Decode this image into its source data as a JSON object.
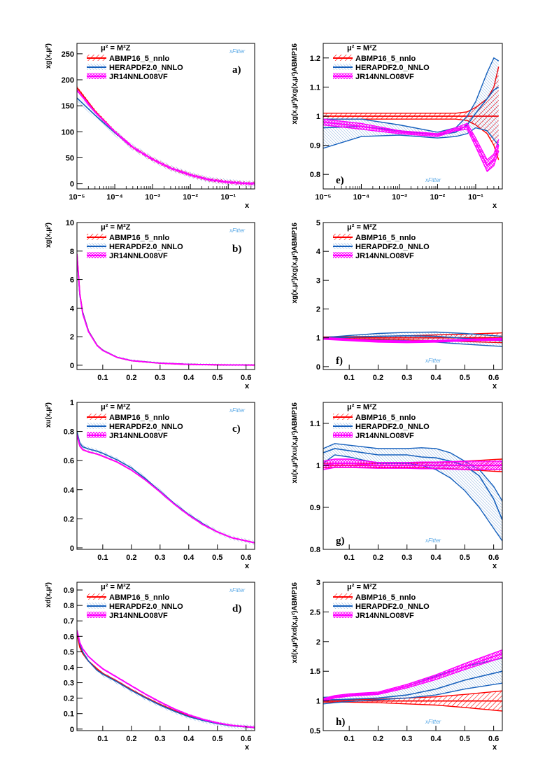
{
  "legend": {
    "scale": "μ² = M²Z",
    "entries": [
      "ABMP16_5_nnlo",
      "HERAPDF2.0_NNLO",
      "JR14NNLO08VF"
    ]
  },
  "colors": {
    "abmp": "#ff0000",
    "hera": "#1560bd",
    "jr": "#ff00ff"
  },
  "watermark": "xFitter",
  "chart_data": [
    {
      "panel": "a)",
      "type": "line",
      "xscale": "log",
      "ylabel": "xg(x,μ²)",
      "xlabel": "x",
      "xlim": [
        1e-05,
        0.5
      ],
      "ylim": [
        -10,
        270
      ],
      "xticks": [
        1e-05,
        0.0001,
        0.001,
        0.01,
        0.1
      ],
      "xticklabels": [
        "10⁻⁵",
        "10⁻⁴",
        "10⁻³",
        "10⁻²",
        "10⁻¹"
      ],
      "yticks": [
        0,
        50,
        100,
        150,
        200,
        250
      ],
      "yticklabels": [
        "0",
        "50",
        "100",
        "150",
        "200",
        "250"
      ],
      "x": [
        1e-05,
        3e-05,
        0.0001,
        0.0003,
        0.001,
        0.003,
        0.01,
        0.03,
        0.1,
        0.3,
        0.5
      ],
      "series": [
        {
          "name": "ABMP16_5_nnlo",
          "values": [
            185,
            140,
            100,
            70,
            47,
            30,
            17,
            8,
            3,
            0.5,
            0.1
          ],
          "band": 4
        },
        {
          "name": "HERAPDF2.0_NNLO",
          "values": [
            165,
            132,
            98,
            70,
            47,
            30,
            17,
            8,
            3,
            0.5,
            0.1
          ],
          "band": 6
        },
        {
          "name": "JR14NNLO08VF",
          "values": [
            180,
            138,
            100,
            70,
            47,
            30,
            17,
            8,
            3,
            0.5,
            0.1
          ],
          "band": 3
        }
      ]
    },
    {
      "panel": "e)",
      "type": "line",
      "xscale": "log",
      "ylabel": "xg(x,μ²)/xg(x,μ²)ABMP16",
      "xlabel": "x",
      "xlim": [
        1e-05,
        0.5
      ],
      "ylim": [
        0.75,
        1.25
      ],
      "xticks": [
        1e-05,
        0.0001,
        0.001,
        0.01,
        0.1
      ],
      "xticklabels": [
        "10⁻⁵",
        "10⁻⁴",
        "10⁻³",
        "10⁻²",
        "10⁻¹"
      ],
      "yticks": [
        0.8,
        0.9,
        1.0,
        1.1,
        1.2
      ],
      "yticklabels": [
        "0.8",
        "0.9",
        "1",
        "1.1",
        "1.2"
      ],
      "x": [
        1e-05,
        0.0001,
        0.001,
        0.01,
        0.03,
        0.06,
        0.1,
        0.2,
        0.3,
        0.4
      ],
      "series": [
        {
          "name": "ABMP16_5_nnlo",
          "values": [
            1.0,
            1.0,
            1.0,
            1.0,
            1.0,
            1.0,
            1.0,
            1.0,
            1.0,
            1.0
          ],
          "bandLo": [
            0.99,
            0.99,
            0.99,
            0.99,
            0.99,
            0.985,
            0.97,
            0.94,
            0.9,
            0.85
          ],
          "bandHi": [
            1.01,
            1.01,
            1.01,
            1.01,
            1.01,
            1.015,
            1.03,
            1.06,
            1.1,
            1.17
          ]
        },
        {
          "name": "HERAPDF2.0_NNLO",
          "values": [
            0.96,
            0.965,
            0.95,
            0.935,
            0.945,
            0.97,
            1.01,
            1.06,
            1.09,
            1.1
          ],
          "bandLo": [
            0.89,
            0.93,
            0.935,
            0.925,
            0.93,
            0.94,
            0.96,
            0.95,
            0.92,
            0.9
          ],
          "bandHi": [
            0.99,
            0.99,
            0.97,
            0.945,
            0.96,
            1.0,
            1.05,
            1.15,
            1.2,
            1.19
          ]
        },
        {
          "name": "JR14NNLO08VF",
          "values": [
            0.98,
            0.965,
            0.945,
            0.935,
            0.955,
            0.965,
            0.91,
            0.83,
            0.85,
            0.9
          ],
          "bandLo": [
            0.97,
            0.955,
            0.94,
            0.93,
            0.95,
            0.955,
            0.895,
            0.81,
            0.83,
            0.88
          ],
          "bandHi": [
            0.99,
            0.975,
            0.95,
            0.94,
            0.96,
            0.975,
            0.925,
            0.85,
            0.87,
            0.92
          ]
        }
      ]
    },
    {
      "panel": "b)",
      "type": "line",
      "xscale": "linear",
      "ylabel": "xg(x,μ²)",
      "xlabel": "x",
      "xlim": [
        0.01,
        0.63
      ],
      "ylim": [
        -0.3,
        10
      ],
      "xticks": [
        0.1,
        0.2,
        0.3,
        0.4,
        0.5,
        0.6
      ],
      "xticklabels": [
        "0.1",
        "0.2",
        "0.3",
        "0.4",
        "0.5",
        "0.6"
      ],
      "yticks": [
        0,
        2,
        4,
        6,
        8,
        10
      ],
      "yticklabels": [
        "0",
        "2",
        "4",
        "6",
        "8",
        "10"
      ],
      "x": [
        0.01,
        0.02,
        0.03,
        0.05,
        0.08,
        0.1,
        0.15,
        0.2,
        0.3,
        0.4,
        0.5,
        0.63
      ],
      "series": [
        {
          "name": "ABMP16_5_nnlo",
          "values": [
            7.8,
            5.0,
            3.7,
            2.4,
            1.4,
            1.05,
            0.55,
            0.32,
            0.14,
            0.06,
            0.03,
            0.01
          ],
          "band": 0.05
        },
        {
          "name": "HERAPDF2.0_NNLO",
          "values": [
            7.6,
            4.9,
            3.7,
            2.4,
            1.4,
            1.05,
            0.56,
            0.33,
            0.15,
            0.07,
            0.03,
            0.01
          ],
          "band": 0.08
        },
        {
          "name": "JR14NNLO08VF",
          "values": [
            7.8,
            5.0,
            3.6,
            2.35,
            1.38,
            1.03,
            0.55,
            0.32,
            0.14,
            0.06,
            0.03,
            0.01
          ],
          "band": 0.04
        }
      ]
    },
    {
      "panel": "f)",
      "type": "line",
      "xscale": "linear",
      "ylabel": "xg(x,μ²)/xg(x,μ²)ABMP16",
      "xlabel": "x",
      "xlim": [
        0.01,
        0.63
      ],
      "ylim": [
        -0.1,
        5
      ],
      "xticks": [
        0.1,
        0.2,
        0.3,
        0.4,
        0.5,
        0.6
      ],
      "xticklabels": [
        "0.1",
        "0.2",
        "0.3",
        "0.4",
        "0.5",
        "0.6"
      ],
      "yticks": [
        0,
        1,
        2,
        3,
        4,
        5
      ],
      "yticklabels": [
        "0",
        "1",
        "2",
        "3",
        "4",
        "5"
      ],
      "x": [
        0.01,
        0.1,
        0.2,
        0.3,
        0.4,
        0.5,
        0.63
      ],
      "series": [
        {
          "name": "ABMP16_5_nnlo",
          "values": [
            1.0,
            1.0,
            1.0,
            1.0,
            1.0,
            1.0,
            1.0
          ],
          "bandLo": [
            0.97,
            0.96,
            0.95,
            0.93,
            0.9,
            0.87,
            0.83
          ],
          "bandHi": [
            1.03,
            1.04,
            1.05,
            1.07,
            1.1,
            1.13,
            1.17
          ]
        },
        {
          "name": "HERAPDF2.0_NNLO",
          "values": [
            0.98,
            1.02,
            1.05,
            1.07,
            1.05,
            0.98,
            0.9
          ],
          "bandLo": [
            0.95,
            0.95,
            0.92,
            0.9,
            0.85,
            0.78,
            0.7
          ],
          "bandHi": [
            1.01,
            1.08,
            1.15,
            1.19,
            1.2,
            1.15,
            1.05
          ]
        },
        {
          "name": "JR14NNLO08VF",
          "values": [
            0.98,
            0.93,
            0.88,
            0.86,
            0.88,
            0.92,
            0.95
          ],
          "bandLo": [
            0.95,
            0.9,
            0.85,
            0.83,
            0.85,
            0.89,
            0.92
          ],
          "bandHi": [
            1.01,
            0.96,
            0.91,
            0.89,
            0.91,
            0.95,
            0.98
          ]
        }
      ]
    },
    {
      "panel": "c)",
      "type": "line",
      "xscale": "linear",
      "ylabel": "xu(x,μ²)",
      "xlabel": "x",
      "xlim": [
        0.01,
        0.63
      ],
      "ylim": [
        -0.01,
        1.0
      ],
      "xticks": [
        0.1,
        0.2,
        0.3,
        0.4,
        0.5,
        0.6
      ],
      "xticklabels": [
        "0.1",
        "0.2",
        "0.3",
        "0.4",
        "0.5",
        "0.6"
      ],
      "yticks": [
        0,
        0.2,
        0.4,
        0.6,
        0.8,
        1.0
      ],
      "yticklabels": [
        "0",
        "0.2",
        "0.4",
        "0.6",
        "0.8",
        "1"
      ],
      "x": [
        0.01,
        0.02,
        0.03,
        0.05,
        0.08,
        0.1,
        0.15,
        0.2,
        0.25,
        0.3,
        0.35,
        0.4,
        0.45,
        0.5,
        0.55,
        0.63
      ],
      "series": [
        {
          "name": "ABMP16_5_nnlo",
          "values": [
            0.78,
            0.7,
            0.675,
            0.66,
            0.645,
            0.63,
            0.59,
            0.535,
            0.465,
            0.385,
            0.3,
            0.225,
            0.16,
            0.11,
            0.07,
            0.035
          ],
          "band": 0.005
        },
        {
          "name": "HERAPDF2.0_NNLO",
          "values": [
            0.8,
            0.72,
            0.695,
            0.68,
            0.665,
            0.65,
            0.605,
            0.55,
            0.475,
            0.39,
            0.305,
            0.23,
            0.165,
            0.11,
            0.07,
            0.035
          ],
          "band": 0.015
        },
        {
          "name": "JR14NNLO08VF",
          "values": [
            0.78,
            0.7,
            0.675,
            0.66,
            0.645,
            0.63,
            0.59,
            0.535,
            0.465,
            0.385,
            0.3,
            0.225,
            0.16,
            0.11,
            0.07,
            0.035
          ],
          "band": 0.005
        }
      ]
    },
    {
      "panel": "g)",
      "type": "line",
      "xscale": "linear",
      "ylabel": "xu(x,μ²)/xu(x,μ²)ABMP16",
      "xlabel": "x",
      "xlim": [
        0.01,
        0.63
      ],
      "ylim": [
        0.8,
        1.15
      ],
      "xticks": [
        0.1,
        0.2,
        0.3,
        0.4,
        0.5,
        0.6
      ],
      "xticklabels": [
        "0.1",
        "0.2",
        "0.3",
        "0.4",
        "0.5",
        "0.6"
      ],
      "yticks": [
        0.8,
        0.9,
        1.0,
        1.1
      ],
      "yticklabels": [
        "0.8",
        "0.9",
        "1",
        "1.1"
      ],
      "x": [
        0.01,
        0.05,
        0.1,
        0.2,
        0.3,
        0.35,
        0.4,
        0.45,
        0.5,
        0.55,
        0.6,
        0.63
      ],
      "series": [
        {
          "name": "ABMP16_5_nnlo",
          "values": [
            1.0,
            1.0,
            1.0,
            1.0,
            1.0,
            1.0,
            1.0,
            1.0,
            1.0,
            1.0,
            1.0,
            1.0
          ],
          "bandLo": [
            0.995,
            0.995,
            0.995,
            0.995,
            0.995,
            0.994,
            0.993,
            0.992,
            0.99,
            0.988,
            0.986,
            0.985
          ],
          "bandHi": [
            1.005,
            1.005,
            1.005,
            1.005,
            1.005,
            1.006,
            1.007,
            1.008,
            1.01,
            1.012,
            1.014,
            1.015
          ]
        },
        {
          "name": "HERAPDF2.0_NNLO",
          "values": [
            1.03,
            1.04,
            1.035,
            1.025,
            1.025,
            1.02,
            1.018,
            1.01,
            1.0,
            0.975,
            0.92,
            0.87
          ],
          "bandLo": [
            1.005,
            1.025,
            1.02,
            1.005,
            1.005,
            1.0,
            0.99,
            0.97,
            0.94,
            0.9,
            0.85,
            0.82
          ],
          "bandHi": [
            1.04,
            1.052,
            1.048,
            1.04,
            1.04,
            1.042,
            1.04,
            1.03,
            1.01,
            0.99,
            0.95,
            0.915
          ]
        },
        {
          "name": "JR14NNLO08VF",
          "values": [
            1.0,
            1.005,
            1.005,
            1.0,
            1.0,
            1.0,
            1.0,
            1.0,
            1.0,
            1.0,
            1.0,
            1.0
          ],
          "bandLo": [
            0.99,
            0.995,
            0.995,
            0.993,
            0.993,
            0.992,
            0.992,
            0.991,
            0.99,
            0.99,
            0.99,
            0.99
          ],
          "bandHi": [
            1.01,
            1.015,
            1.015,
            1.007,
            1.007,
            1.008,
            1.008,
            1.009,
            1.01,
            1.01,
            1.01,
            1.01
          ]
        }
      ]
    },
    {
      "panel": "d)",
      "type": "line",
      "xscale": "linear",
      "ylabel": "xd(x,μ²)",
      "xlabel": "x",
      "xlim": [
        0.01,
        0.63
      ],
      "ylim": [
        -0.01,
        0.95
      ],
      "xticks": [
        0.1,
        0.2,
        0.3,
        0.4,
        0.5,
        0.6
      ],
      "xticklabels": [
        "0.1",
        "0.2",
        "0.3",
        "0.4",
        "0.5",
        "0.6"
      ],
      "yticks": [
        0,
        0.1,
        0.2,
        0.3,
        0.4,
        0.5,
        0.6,
        0.7,
        0.8,
        0.9
      ],
      "yticklabels": [
        "0",
        "0.1",
        "0.2",
        "0.3",
        "0.4",
        "0.5",
        "0.6",
        "0.7",
        "0.8",
        "0.9"
      ],
      "x": [
        0.01,
        0.02,
        0.03,
        0.05,
        0.08,
        0.1,
        0.15,
        0.2,
        0.25,
        0.3,
        0.35,
        0.4,
        0.45,
        0.5,
        0.55,
        0.63
      ],
      "series": [
        {
          "name": "ABMP16_5_nnlo",
          "values": [
            0.62,
            0.53,
            0.49,
            0.44,
            0.39,
            0.36,
            0.31,
            0.255,
            0.205,
            0.16,
            0.12,
            0.085,
            0.058,
            0.037,
            0.022,
            0.01
          ],
          "band": 0.005
        },
        {
          "name": "HERAPDF2.0_NNLO",
          "values": [
            0.64,
            0.55,
            0.5,
            0.44,
            0.38,
            0.355,
            0.305,
            0.25,
            0.2,
            0.155,
            0.115,
            0.08,
            0.055,
            0.035,
            0.021,
            0.01
          ],
          "band": 0.015
        },
        {
          "name": "JR14NNLO08VF",
          "values": [
            0.64,
            0.56,
            0.52,
            0.47,
            0.42,
            0.39,
            0.335,
            0.28,
            0.225,
            0.175,
            0.13,
            0.092,
            0.062,
            0.04,
            0.024,
            0.011
          ],
          "band": 0.006
        }
      ]
    },
    {
      "panel": "h)",
      "type": "line",
      "xscale": "linear",
      "ylabel": "xd(x,μ²)/xd(x,μ²)ABMP16",
      "xlabel": "x",
      "xlim": [
        0.01,
        0.63
      ],
      "ylim": [
        0.5,
        3.0
      ],
      "xticks": [
        0.1,
        0.2,
        0.3,
        0.4,
        0.5,
        0.6
      ],
      "xticklabels": [
        "0.1",
        "0.2",
        "0.3",
        "0.4",
        "0.5",
        "0.6"
      ],
      "yticks": [
        0.5,
        1.0,
        1.5,
        2.0,
        2.5,
        3.0
      ],
      "yticklabels": [
        "0.5",
        "1",
        "1.5",
        "2",
        "2.5",
        "3"
      ],
      "x": [
        0.01,
        0.05,
        0.1,
        0.2,
        0.3,
        0.4,
        0.5,
        0.63
      ],
      "series": [
        {
          "name": "ABMP16_5_nnlo",
          "values": [
            1.0,
            1.0,
            1.0,
            1.0,
            1.0,
            1.0,
            1.0,
            1.0
          ],
          "bandLo": [
            0.98,
            0.98,
            0.98,
            0.97,
            0.95,
            0.93,
            0.89,
            0.83
          ],
          "bandHi": [
            1.02,
            1.02,
            1.02,
            1.03,
            1.05,
            1.07,
            1.11,
            1.17
          ]
        },
        {
          "name": "HERAPDF2.0_NNLO",
          "values": [
            1.02,
            1.02,
            1.03,
            1.05,
            1.1,
            1.2,
            1.35,
            1.5
          ],
          "bandLo": [
            0.95,
            0.97,
            0.99,
            1.02,
            1.05,
            1.1,
            1.2,
            1.3
          ],
          "bandHi": [
            1.06,
            1.07,
            1.08,
            1.13,
            1.25,
            1.42,
            1.58,
            1.72
          ]
        },
        {
          "name": "JR14NNLO08VF",
          "values": [
            1.02,
            1.07,
            1.1,
            1.13,
            1.25,
            1.4,
            1.58,
            1.8
          ],
          "bandLo": [
            1.0,
            1.05,
            1.08,
            1.11,
            1.22,
            1.36,
            1.53,
            1.73
          ],
          "bandHi": [
            1.04,
            1.09,
            1.12,
            1.15,
            1.28,
            1.44,
            1.63,
            1.86
          ]
        }
      ]
    }
  ]
}
